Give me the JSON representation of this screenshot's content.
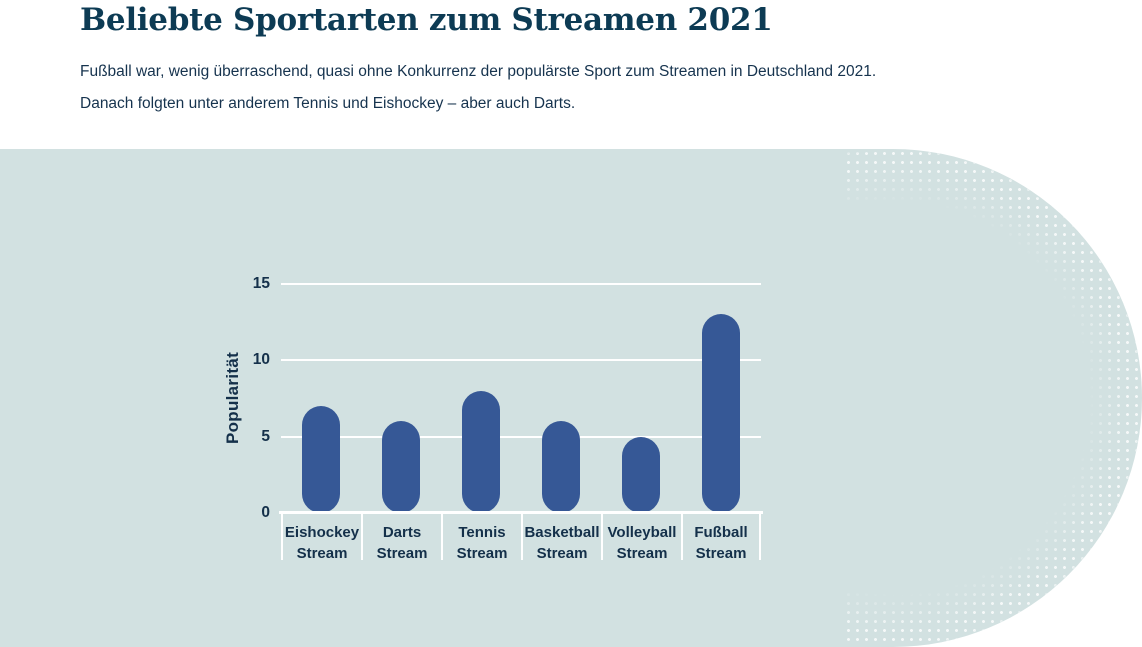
{
  "header": {
    "title": "Beliebte Sportarten zum Streamen 2021",
    "subtitle_line1": "Fußball war, wenig überraschend, quasi ohne Konkurrenz der populärste Sport zum Streamen in Deutschland 2021.",
    "subtitle_line2": "Danach folgten unter anderem Tennis und Eishockey – aber auch Darts."
  },
  "colors": {
    "page_background": "#ffffff",
    "title_text": "#0d3b54",
    "body_text": "#16334e",
    "panel_background": "#d2e1e1",
    "bar": "#365896",
    "gridline": "#ffffff",
    "chart_text": "#14304a"
  },
  "chart_data": {
    "type": "bar",
    "title": "",
    "xlabel": "",
    "ylabel": "Popularität",
    "categories": [
      "Eishockey Stream",
      "Darts Stream",
      "Tennis Stream",
      "Basketball Stream",
      "Volleyball Stream",
      "Fußball Stream"
    ],
    "values": [
      7,
      6,
      8,
      6,
      5,
      13
    ],
    "yticks": [
      0,
      5,
      10,
      15
    ],
    "ylim": [
      0,
      15
    ],
    "grid": "horizontal white lines on mint panel",
    "legend": "none",
    "bar_style": "pill-rounded vertical bars"
  }
}
